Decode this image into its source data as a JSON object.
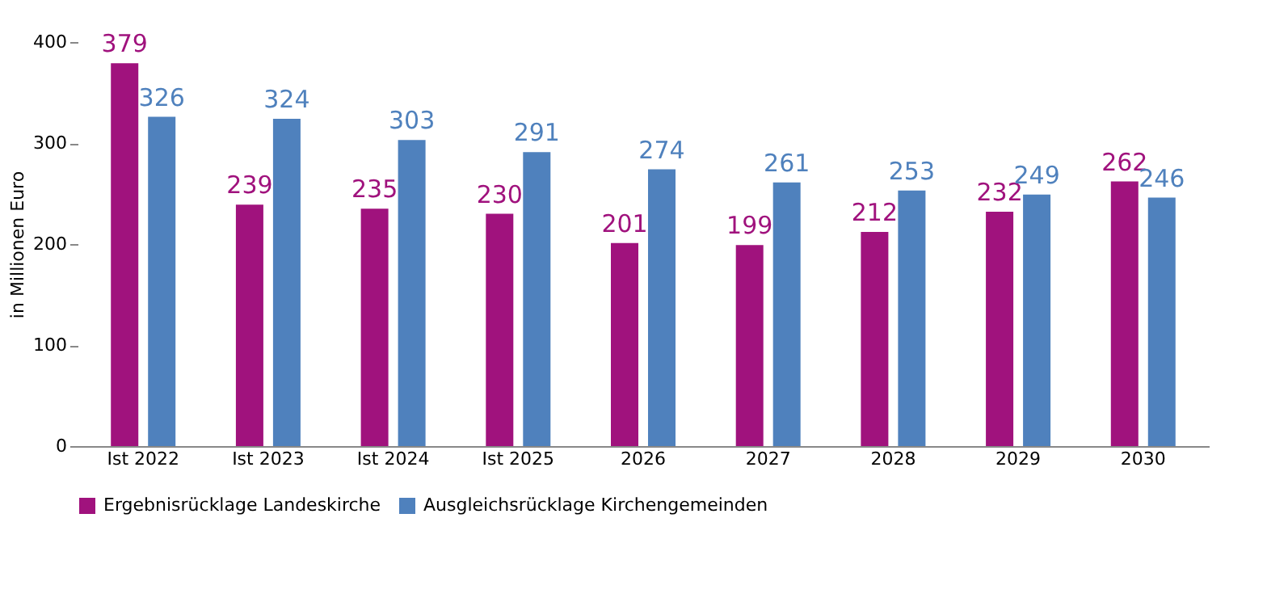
{
  "chart_data": {
    "type": "bar",
    "ylabel": "in Millionen Euro",
    "categories": [
      "Ist 2022",
      "Ist 2023",
      "Ist 2024",
      "Ist 2025",
      "2026",
      "2027",
      "2028",
      "2029",
      "2030"
    ],
    "series": [
      {
        "name": "Ergebnisrücklage Landeskirche",
        "color": "#a0127d",
        "values": [
          379,
          239,
          235,
          230,
          201,
          199,
          212,
          232,
          262
        ]
      },
      {
        "name": "Ausgleichsrücklage Kirchengemeinden",
        "color": "#4f81bd",
        "values": [
          326,
          324,
          303,
          291,
          274,
          261,
          253,
          249,
          246
        ]
      }
    ],
    "ylim": [
      0,
      400
    ],
    "yticks": [
      0,
      100,
      200,
      300,
      400
    ],
    "data_labels": true,
    "legend": "bottom",
    "grid": false
  }
}
